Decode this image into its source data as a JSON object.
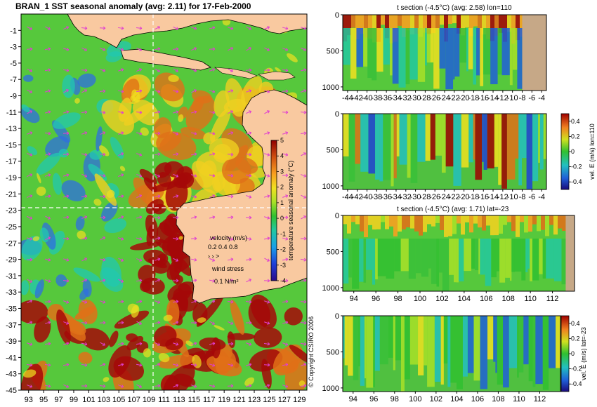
{
  "colors": {
    "land": "#f9c9a0",
    "land_section": "#c6a887",
    "warm": "#e07018",
    "very_warm": "#a40808",
    "neutral": "#38c038",
    "cool": "#2f6fe0",
    "vector": "#e040d0",
    "dash": "#ffffff"
  },
  "chart_data": [
    {
      "type": "heatmap",
      "id": "map",
      "title": "BRAN_1  SST seasonal anomaly (avg: 2.11) for 17-Feb-2000",
      "x_ticks": [
        "93",
        "95",
        "97",
        "99",
        "101",
        "103",
        "105",
        "107",
        "109",
        "111",
        "113",
        "115",
        "117",
        "119",
        "121",
        "123",
        "125",
        "127",
        "129"
      ],
      "y_ticks": [
        "-1",
        "-3",
        "-5",
        "-7",
        "-9",
        "-11",
        "-13",
        "-15",
        "-17",
        "-19",
        "-21",
        "-23",
        "-25",
        "-27",
        "-29",
        "-31",
        "-33",
        "-35",
        "-37",
        "-39",
        "-41",
        "-43",
        "-45"
      ],
      "xlim": [
        92,
        130
      ],
      "ylim": [
        -45,
        1
      ],
      "colorbar": {
        "label": "temperature seasonal anomaly (°C)",
        "ticks": [
          "5",
          "4",
          "3",
          "2",
          "1",
          "0",
          "-1",
          "-2",
          "-3",
          "-4"
        ],
        "range": [
          -4,
          5
        ]
      },
      "velocity_legend": {
        "title": "velocity (m/s)",
        "values": "0.2 0.4 0.8"
      },
      "wind_legend": {
        "title": "wind stress",
        "value": "0.1 N/m²"
      },
      "section_lines": {
        "lon": 110,
        "lat": -23
      }
    },
    {
      "type": "heatmap",
      "id": "tsec_lon",
      "title": "t section (-4.5°C) (avg: 2.58) lon=110",
      "x_ticks": [
        "-44",
        "-42",
        "-40",
        "-38",
        "-36",
        "-34",
        "-32",
        "-30",
        "-28",
        "-26",
        "-24",
        "-22",
        "-20",
        "-18",
        "-16",
        "-14",
        "-12",
        "-10",
        "-8",
        "-6",
        "-4"
      ],
      "xlim": [
        -45,
        -3
      ],
      "y_ticks": [
        "0",
        "500",
        "1000"
      ],
      "ylim": [
        1050,
        0
      ],
      "land_from_x": -8
    },
    {
      "type": "heatmap",
      "id": "vsec_lon",
      "title": "",
      "x_ticks": [
        "-44",
        "-42",
        "-40",
        "-38",
        "-36",
        "-34",
        "-32",
        "-30",
        "-28",
        "-26",
        "-24",
        "-22",
        "-20",
        "-18",
        "-16",
        "-14",
        "-12",
        "-10",
        "-8",
        "-6",
        "-4"
      ],
      "xlim": [
        -45,
        -3
      ],
      "y_ticks": [
        "0",
        "500",
        "1000"
      ],
      "ylim": [
        1050,
        0
      ],
      "colorbar": {
        "label": "vel. E (m/s) lon=110",
        "ticks": [
          "0.4",
          "0.2",
          "0",
          "-0.2",
          "-0.4"
        ],
        "range": [
          -0.5,
          0.5
        ]
      }
    },
    {
      "type": "heatmap",
      "id": "tsec_lat",
      "title": "t section (-4.5°C) (avg: 1.71) lat=-23",
      "x_ticks": [
        "94",
        "96",
        "98",
        "100",
        "102",
        "104",
        "106",
        "108",
        "110",
        "112"
      ],
      "xlim": [
        93,
        114
      ],
      "y_ticks": [
        "0",
        "500",
        "1000"
      ],
      "ylim": [
        1050,
        0
      ],
      "land_from_x": 113.2
    },
    {
      "type": "heatmap",
      "id": "vsec_lat",
      "title": "",
      "x_ticks": [
        "94",
        "96",
        "98",
        "100",
        "102",
        "104",
        "106",
        "108",
        "110",
        "112"
      ],
      "xlim": [
        93,
        114
      ],
      "y_ticks": [
        "0",
        "500",
        "1000"
      ],
      "ylim": [
        1050,
        0
      ],
      "colorbar": {
        "label": "vel. E (m/s) lat=-23",
        "ticks": [
          "0.4",
          "0.2",
          "0",
          "-0.2",
          "-0.4"
        ],
        "range": [
          -0.5,
          0.5
        ]
      }
    }
  ],
  "copyright": "© Copyright CSIRO 2006"
}
